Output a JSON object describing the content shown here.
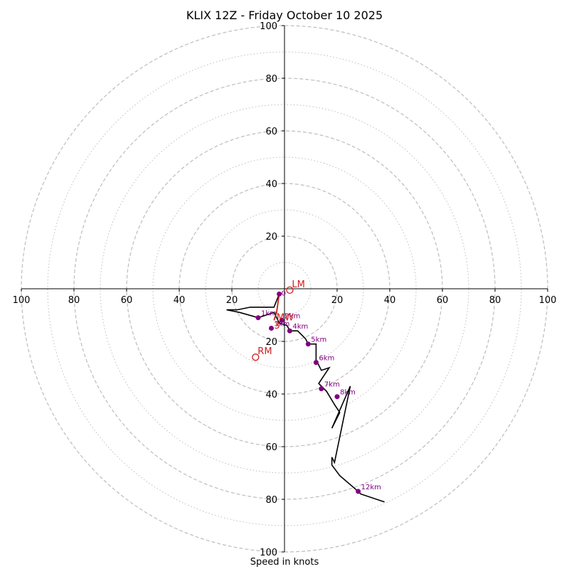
{
  "chart_data": {
    "type": "hodograph",
    "title": "KLIX 12Z - Friday October 10 2025",
    "xlabel": "Speed in knots",
    "axis_range": [
      -100,
      100
    ],
    "rings_major": [
      20,
      40,
      60,
      80,
      100
    ],
    "rings_minor": [
      10,
      30,
      50,
      70,
      90
    ],
    "x_tick_labels": [
      "100",
      "80",
      "60",
      "40",
      "20",
      "20",
      "40",
      "60",
      "80",
      "100"
    ],
    "x_tick_values": [
      -100,
      -80,
      -60,
      -40,
      -20,
      20,
      40,
      60,
      80,
      100
    ],
    "y_tick_labels": [
      "100",
      "80",
      "60",
      "40",
      "20",
      "20",
      "40",
      "60",
      "80",
      "100"
    ],
    "y_tick_values": [
      100,
      80,
      60,
      40,
      20,
      -20,
      -40,
      -60,
      -80,
      -100
    ],
    "wind_trace": [
      [
        -2,
        -2
      ],
      [
        -4,
        -7
      ],
      [
        -13,
        -7
      ],
      [
        -18,
        -8
      ],
      [
        -22,
        -8
      ],
      [
        -17,
        -9
      ],
      [
        -10,
        -11
      ],
      [
        -4,
        -9
      ],
      [
        -3,
        -11
      ],
      [
        -2,
        -13
      ],
      [
        1,
        -14
      ],
      [
        2,
        -16
      ],
      [
        5,
        -16
      ],
      [
        8,
        -19
      ],
      [
        9,
        -21
      ],
      [
        12,
        -21
      ],
      [
        12,
        -24
      ],
      [
        12,
        -27
      ],
      [
        14,
        -31
      ],
      [
        17,
        -30
      ],
      [
        15,
        -33
      ],
      [
        13,
        -36
      ],
      [
        16,
        -39
      ],
      [
        19,
        -44
      ],
      [
        21,
        -47
      ],
      [
        18,
        -53
      ],
      [
        25,
        -37
      ],
      [
        19,
        -66
      ],
      [
        18,
        -64
      ],
      [
        18,
        -67
      ],
      [
        21,
        -71
      ],
      [
        28,
        -77
      ],
      [
        29,
        -78
      ],
      [
        38,
        -81
      ]
    ],
    "height_markers": [
      {
        "label": "1km",
        "u": -10,
        "v": -11
      },
      {
        "label": "2km",
        "u": -1,
        "v": -12
      },
      {
        "label": "3km",
        "u": -5,
        "v": -15
      },
      {
        "label": "4km",
        "u": 2,
        "v": -16
      },
      {
        "label": "5km",
        "u": 9,
        "v": -21
      },
      {
        "label": "6km",
        "u": 12,
        "v": -28
      },
      {
        "label": "7km",
        "u": 14,
        "v": -38
      },
      {
        "label": "8km",
        "u": 20,
        "v": -41
      },
      {
        "label": "12km",
        "u": 28,
        "v": -77
      }
    ],
    "sfc_marker": {
      "label": "0",
      "u": -2,
      "v": -2
    },
    "effective_shear": [
      [
        -2,
        -2
      ],
      [
        -3,
        -9
      ],
      [
        -4,
        -12
      ]
    ],
    "storm_motion": [
      {
        "label": "LM",
        "u": 2,
        "v": -0.5
      },
      {
        "label": "RM",
        "u": -11,
        "v": -26
      },
      {
        "label": "MW",
        "u": -3,
        "v": -11
      },
      {
        "label": "3",
        "u": -4,
        "v": -14
      }
    ]
  },
  "colors": {
    "trace": "#000000",
    "markers": "#800080",
    "effective": "#cc1f1f",
    "rings": "#bdbdbd",
    "axes": "#000000"
  }
}
